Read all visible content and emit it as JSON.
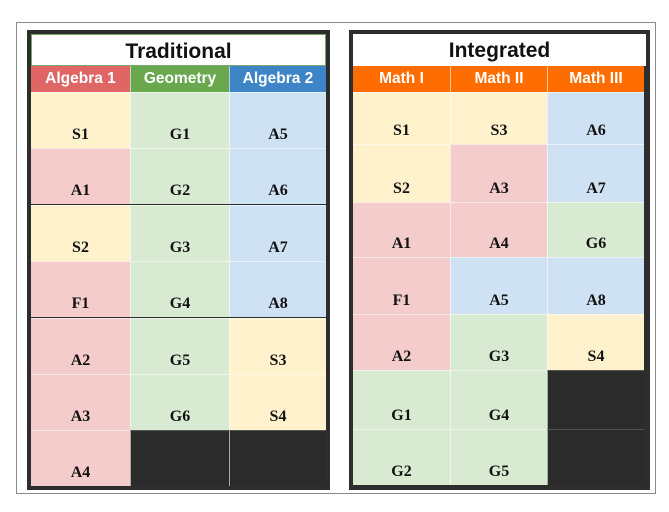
{
  "colors": {
    "algebra1": "#e06666",
    "geometry": "#6aa84f",
    "algebra2": "#3d85c6",
    "integrated_header": "#ff6d01",
    "s_cell": "#fff2cc",
    "a_cell": "#f4cccc",
    "g_cell": "#d9ead3",
    "b_cell": "#cfe2f3",
    "empty": "#2b2b2b"
  },
  "traditional": {
    "title": "Traditional",
    "columns": [
      {
        "name": "Algebra 1",
        "header_color": "#e06666",
        "cells": [
          {
            "label": "S1",
            "color": "#fff2cc"
          },
          {
            "label": "A1",
            "color": "#f4cccc"
          },
          {
            "label": "S2",
            "color": "#fff2cc"
          },
          {
            "label": "F1",
            "color": "#f4cccc"
          },
          {
            "label": "A2",
            "color": "#f4cccc"
          },
          {
            "label": "A3",
            "color": "#f4cccc"
          },
          {
            "label": "A4",
            "color": "#f4cccc"
          }
        ]
      },
      {
        "name": "Geometry",
        "header_color": "#6aa84f",
        "cells": [
          {
            "label": "G1",
            "color": "#d9ead3"
          },
          {
            "label": "G2",
            "color": "#d9ead3"
          },
          {
            "label": "G3",
            "color": "#d9ead3"
          },
          {
            "label": "G4",
            "color": "#d9ead3"
          },
          {
            "label": "G5",
            "color": "#d9ead3"
          },
          {
            "label": "G6",
            "color": "#d9ead3"
          },
          {
            "label": "",
            "color": "#2b2b2b"
          }
        ]
      },
      {
        "name": "Algebra 2",
        "header_color": "#3d85c6",
        "cells": [
          {
            "label": "A5",
            "color": "#cfe2f3"
          },
          {
            "label": "A6",
            "color": "#cfe2f3"
          },
          {
            "label": "A7",
            "color": "#cfe2f3"
          },
          {
            "label": "A8",
            "color": "#cfe2f3"
          },
          {
            "label": "S3",
            "color": "#fff2cc"
          },
          {
            "label": "S4",
            "color": "#fff2cc"
          },
          {
            "label": "",
            "color": "#2b2b2b"
          }
        ]
      }
    ]
  },
  "integrated": {
    "title": "Integrated",
    "columns": [
      {
        "name": "Math I",
        "header_color": "#ff6d01",
        "cells": [
          {
            "label": "S1",
            "color": "#fff2cc"
          },
          {
            "label": "S2",
            "color": "#fff2cc"
          },
          {
            "label": "A1",
            "color": "#f4cccc"
          },
          {
            "label": "F1",
            "color": "#f4cccc"
          },
          {
            "label": "A2",
            "color": "#f4cccc"
          },
          {
            "label": "G1",
            "color": "#d9ead3"
          },
          {
            "label": "G2",
            "color": "#d9ead3"
          }
        ]
      },
      {
        "name": "Math II",
        "header_color": "#ff6d01",
        "cells": [
          {
            "label": "S3",
            "color": "#fff2cc"
          },
          {
            "label": "A3",
            "color": "#f4cccc"
          },
          {
            "label": "A4",
            "color": "#f4cccc"
          },
          {
            "label": "A5",
            "color": "#cfe2f3"
          },
          {
            "label": "G3",
            "color": "#d9ead3"
          },
          {
            "label": "G4",
            "color": "#d9ead3"
          },
          {
            "label": "G5",
            "color": "#d9ead3"
          }
        ]
      },
      {
        "name": "Math III",
        "header_color": "#ff6d01",
        "cells": [
          {
            "label": "A6",
            "color": "#cfe2f3"
          },
          {
            "label": "A7",
            "color": "#cfe2f3"
          },
          {
            "label": "G6",
            "color": "#d9ead3"
          },
          {
            "label": "A8",
            "color": "#cfe2f3"
          },
          {
            "label": "S4",
            "color": "#fff2cc"
          },
          {
            "label": "",
            "color": "#2b2b2b"
          },
          {
            "label": "",
            "color": "#2b2b2b"
          }
        ]
      }
    ]
  }
}
